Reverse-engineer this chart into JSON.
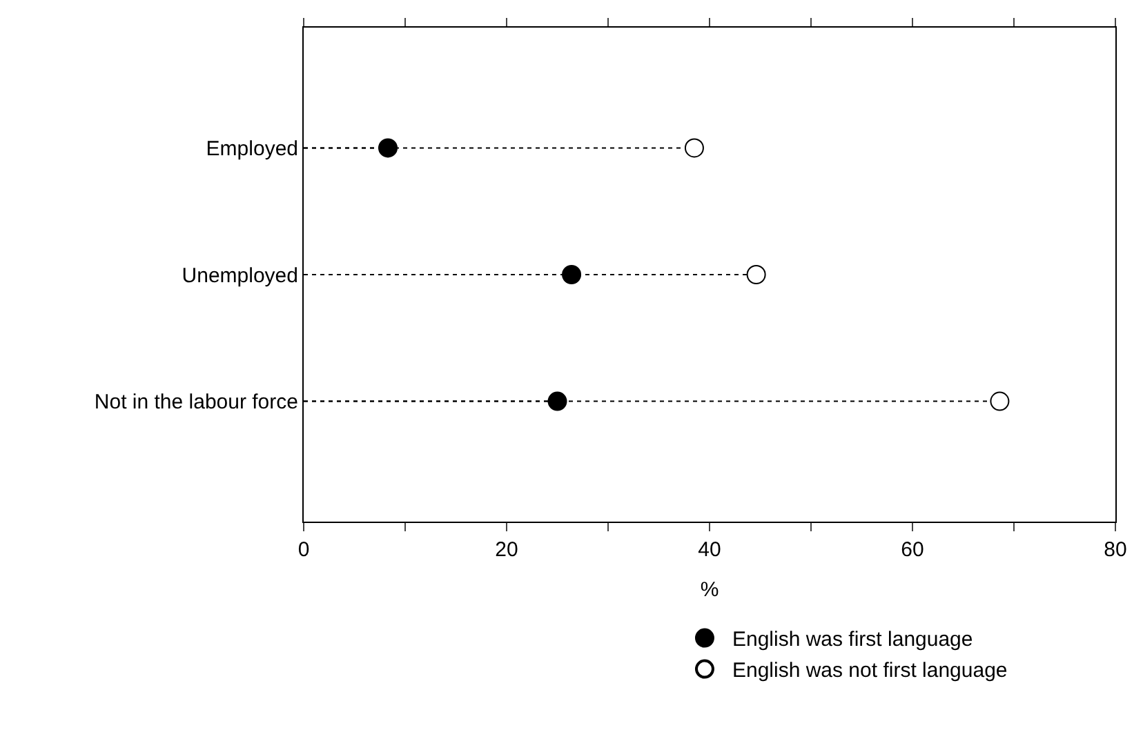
{
  "chart_data": {
    "type": "lollipop",
    "orientation": "horizontal",
    "xlabel": "%",
    "categories": [
      "Employed",
      "Unemployed",
      "Not in the labour force"
    ],
    "series": [
      {
        "name": "English was first language",
        "color": "#000000",
        "values": [
          8.3,
          26.4,
          25.0
        ]
      },
      {
        "name": "English was not first language",
        "color": "#ffffff",
        "values": [
          38.5,
          44.6,
          68.6
        ]
      }
    ],
    "xlim": [
      0,
      80
    ],
    "xticks": [
      0,
      {
        "value": 10,
        "label": null
      },
      20,
      {
        "value": 30,
        "label": null
      },
      40,
      {
        "value": 50,
        "label": null
      },
      60,
      {
        "value": 70,
        "label": null
      },
      80
    ],
    "marker": "circle",
    "line_style": "dotted",
    "legend": "bottom"
  }
}
